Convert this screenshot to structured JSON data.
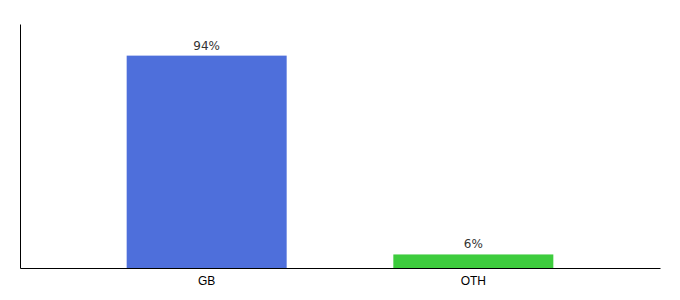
{
  "chart_data": {
    "type": "bar",
    "categories": [
      "GB",
      "OTH"
    ],
    "values": [
      94,
      6
    ],
    "value_labels": [
      "94%",
      "6%"
    ],
    "colors": [
      "#4e6fdb",
      "#3dcc3d"
    ],
    "ylim": [
      0,
      108
    ],
    "data_labels": true,
    "tick_labels": "x",
    "grid": false
  }
}
